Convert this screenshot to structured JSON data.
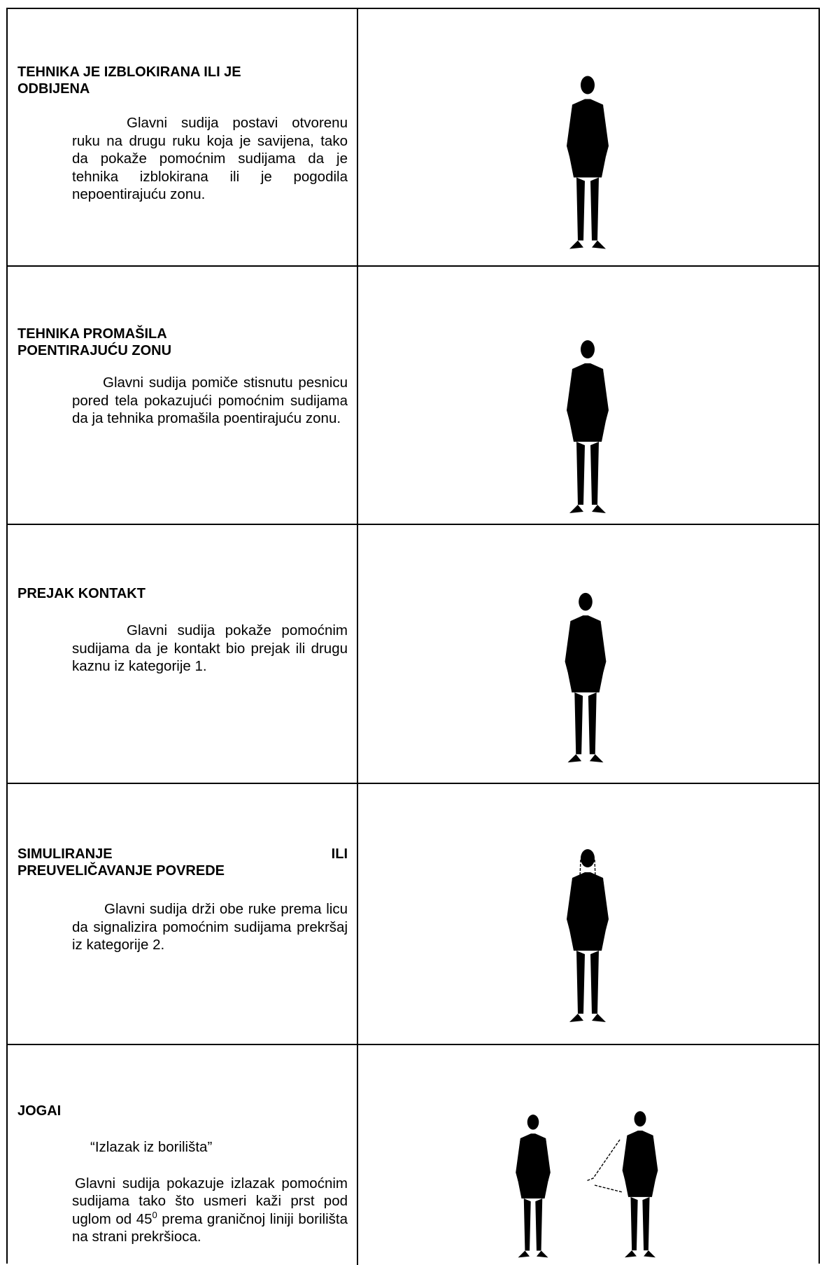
{
  "rows": [
    {
      "title_lines": [
        "TEHNIKA JE IZBLOKIRANA ILI JE",
        "ODBIJENA"
      ],
      "paragraphs": [
        "Glavni sudija postavi otvorenu ruku na drugu ruku koja je savijena, tako da pokaže pomoćnim sudijama da je tehnika izblokirana ili je pogodila nepoentirajuću zonu."
      ]
    },
    {
      "title_lines": [
        "TEHNIKA PROMAŠILA",
        "POENTIRAJUĆU ZONU"
      ],
      "paragraphs": [
        "Glavni sudija pomiče stisnutu pesnicu pored tela pokazujući pomoćnim sudijama da ja tehnika promašila poentirajuću zonu."
      ]
    },
    {
      "title_lines": [
        "PREJAK KONTAKT"
      ],
      "paragraphs": [
        "Glavni sudija pokaže pomoćnim sudijama da je kontakt bio prejak ili drugu kaznu iz kategorije 1."
      ]
    },
    {
      "title_lines": [
        "SIMULIRANJE ILI",
        "PREUVELIČAVANJE POVREDE"
      ],
      "paragraphs": [
        "Glavni sudija drži obe ruke prema licu da signalizira pomoćnim sudijama prekršaj iz kategorije 2."
      ]
    },
    {
      "title_lines": [
        "JOGAI"
      ],
      "paragraphs": [
        "“Izlazak iz borilišta”",
        {
          "text": "Glavni sudija pokazuje izlazak pomoćnim sudijama tako što usmeri kaži prst pod uglom od 45",
          "sup": "0",
          "text_after": "prema graničnoj liniji borilišta na strani prekršioca."
        }
      ]
    }
  ]
}
